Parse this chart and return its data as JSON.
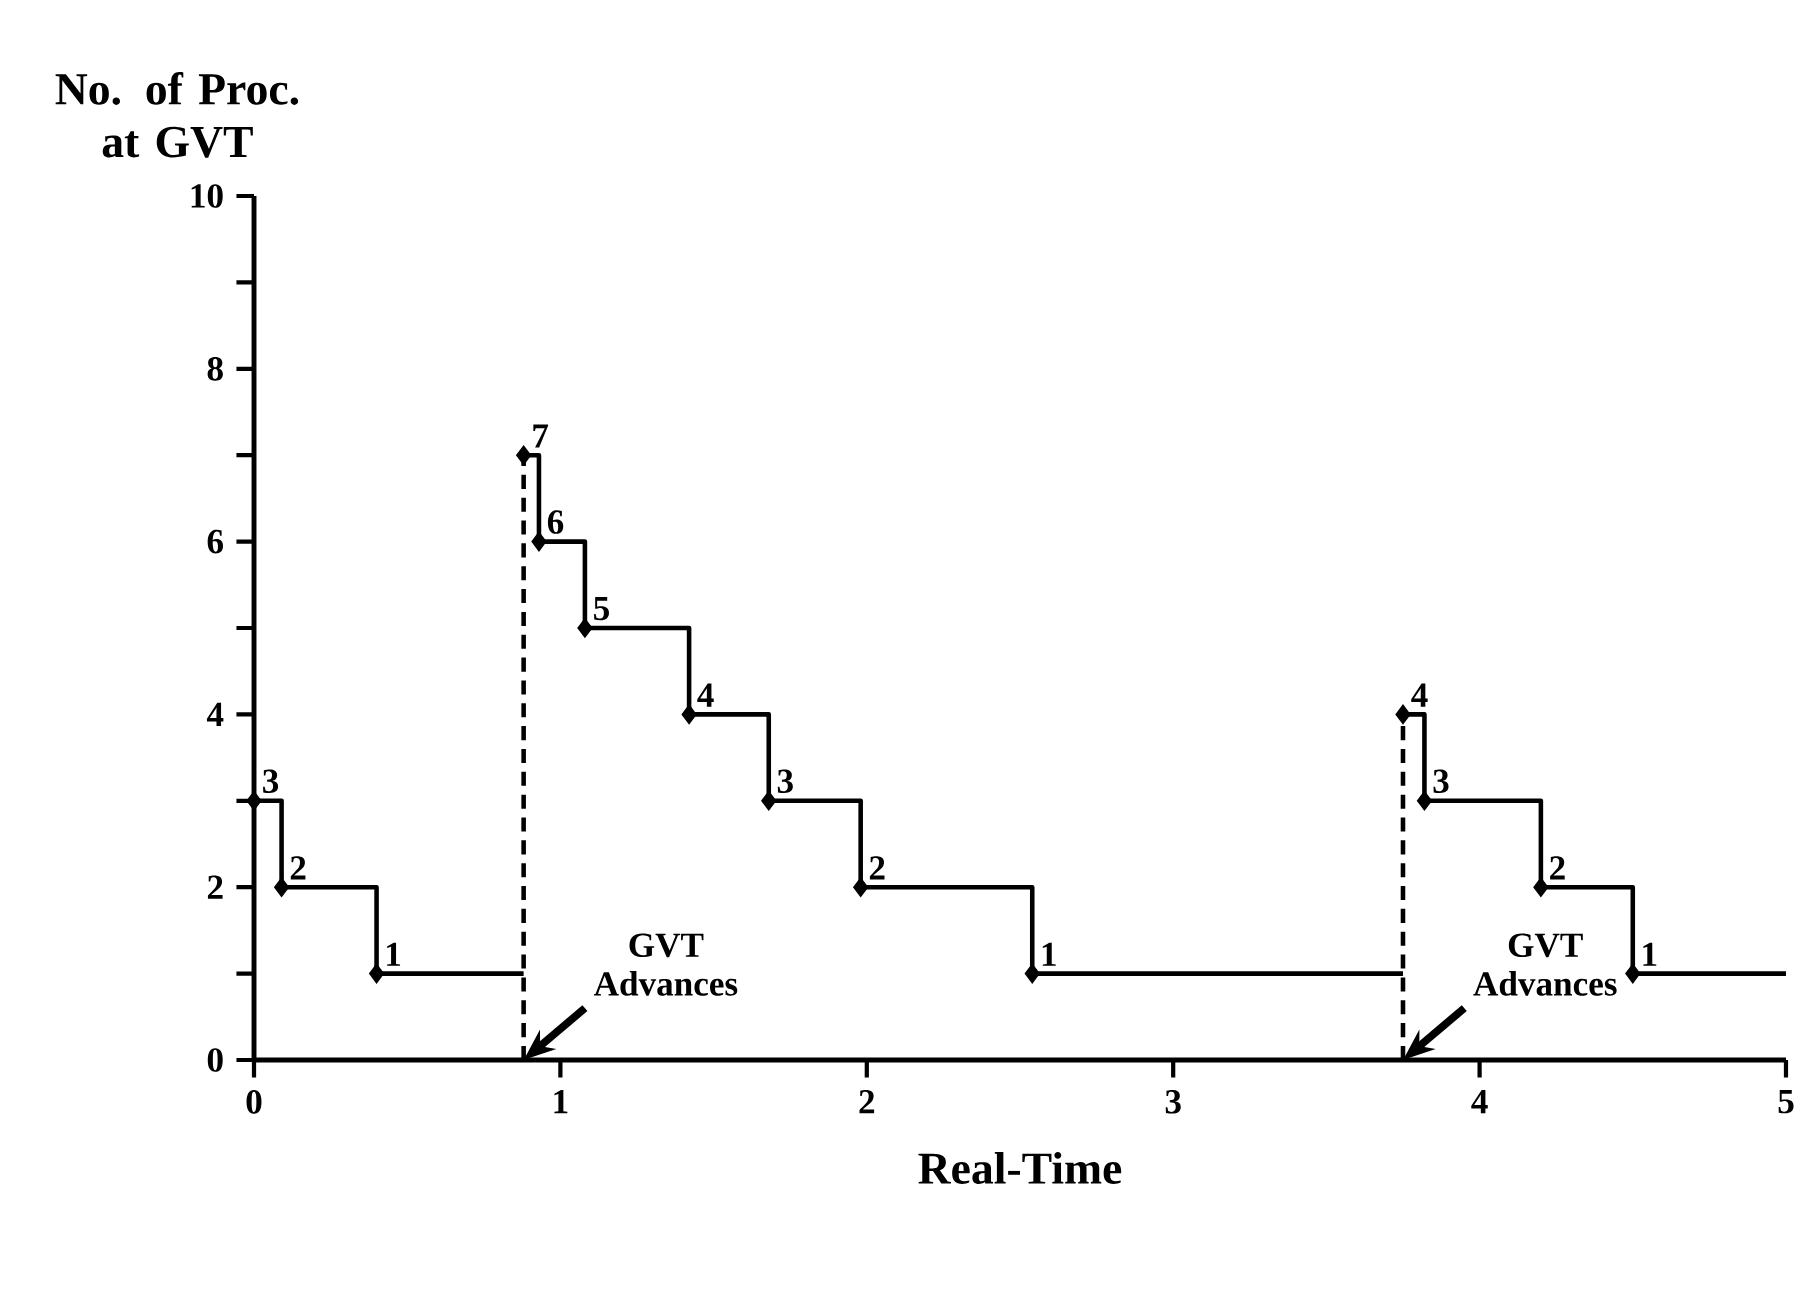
{
  "chart_data": {
    "type": "step",
    "xlabel": "Real-Time",
    "ylabel": "No. of Proc. at GVT",
    "xlim": [
      0,
      5
    ],
    "xticks": [
      0,
      1,
      2,
      3,
      4,
      5
    ],
    "ylim": [
      0,
      10
    ],
    "yticks": [
      0,
      {
        "value": 1,
        "label": null
      },
      2,
      {
        "value": 3,
        "label": null
      },
      4,
      {
        "value": 5,
        "label": null
      },
      6,
      {
        "value": 7,
        "label": null
      },
      8,
      {
        "value": 9,
        "label": null
      },
      10
    ],
    "grid": false,
    "series": [
      {
        "color": "#000000",
        "marker": "diamond",
        "x": [
          0,
          0.09,
          0.4,
          0.88
        ],
        "values": [
          3,
          2,
          1,
          1
        ],
        "value_labels": [
          "3",
          "2",
          "1",
          null
        ]
      },
      {
        "type": "line",
        "color": "#000000",
        "line_style": "dashed",
        "x": [
          0.88,
          0.88
        ],
        "values": [
          0,
          7
        ]
      },
      {
        "color": "#000000",
        "marker": "diamond",
        "x": [
          0.88,
          0.93,
          1.08,
          1.42,
          1.68,
          1.98,
          2.54,
          3.75
        ],
        "values": [
          7,
          6,
          5,
          4,
          3,
          2,
          1,
          1
        ],
        "value_labels": [
          "7",
          "6",
          "5",
          "4",
          "3",
          "2",
          "1",
          null
        ]
      },
      {
        "type": "line",
        "color": "#000000",
        "line_style": "dashed",
        "x": [
          3.75,
          3.75
        ],
        "values": [
          0,
          4
        ]
      },
      {
        "color": "#000000",
        "marker": "diamond",
        "x": [
          3.75,
          3.82,
          4.2,
          4.5,
          5
        ],
        "values": [
          4,
          3,
          2,
          1,
          1
        ],
        "value_labels": [
          "4",
          "3",
          "2",
          "1",
          null
        ]
      }
    ],
    "annotations": [
      {
        "text": "GVT Advances",
        "x": 0.88,
        "y": 0
      },
      {
        "text": "GVT Advances",
        "x": 3.75,
        "y": 0
      }
    ]
  }
}
